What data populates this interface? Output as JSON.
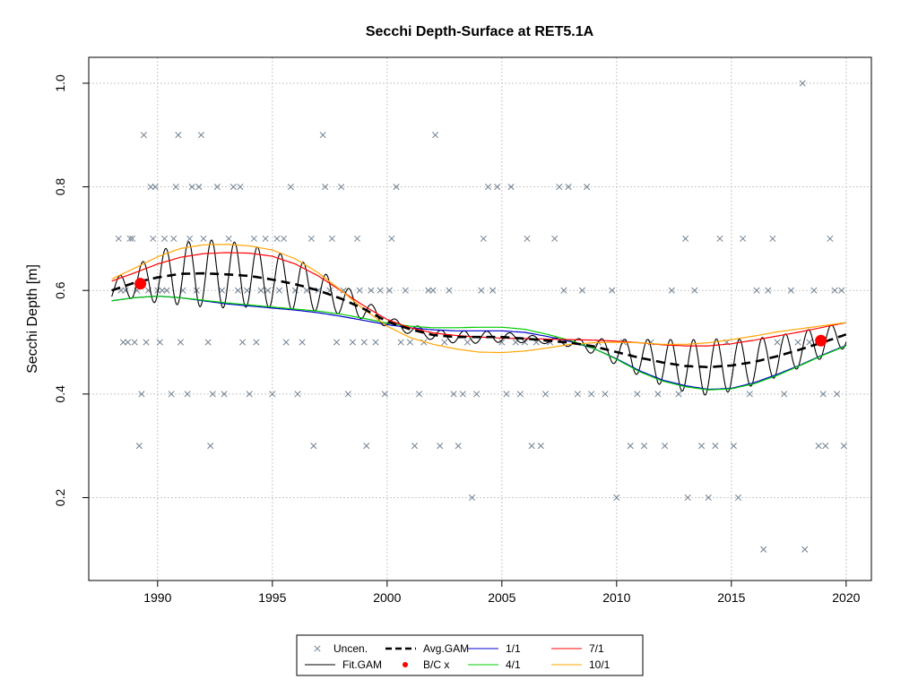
{
  "chart_data": {
    "type": "line",
    "title": "Secchi Depth-Surface at RET5.1A",
    "ylabel": "Secchi Depth [m]",
    "xlabel": "",
    "xlim": [
      1987.0,
      2021.1
    ],
    "ylim": [
      0.04,
      1.05
    ],
    "x_ticks": [
      1990,
      1995,
      2000,
      2005,
      2010,
      2015,
      2020
    ],
    "y_ticks": [
      0.2,
      0.4,
      0.6,
      0.8,
      1.0
    ],
    "x_tick_labels": [
      "1990",
      "1995",
      "2000",
      "2005",
      "2010",
      "2015",
      "2020"
    ],
    "y_tick_labels": [
      "0.2",
      "0.4",
      "0.6",
      "0.8",
      "1.0"
    ],
    "grid": true,
    "legend_position": "bottom-center",
    "legend": [
      {
        "label": "Uncen.",
        "symbol": "x",
        "color": "#708090"
      },
      {
        "label": "Avg.GAM",
        "symbol": "dashed-line",
        "color": "#000000"
      },
      {
        "label": "1/1",
        "symbol": "line",
        "color": "#0000cd"
      },
      {
        "label": "7/1",
        "symbol": "line",
        "color": "#ff0000"
      },
      {
        "label": "Fit.GAM",
        "symbol": "line",
        "color": "#000000"
      },
      {
        "label": "B/C x",
        "symbol": "dot",
        "color": "#ff0000"
      },
      {
        "label": "4/1",
        "symbol": "line",
        "color": "#00cd00"
      },
      {
        "label": "10/1",
        "symbol": "line",
        "color": "#ffa500"
      }
    ],
    "observations": [
      [
        1988.3,
        0.7
      ],
      [
        1988.4,
        0.6
      ],
      [
        1988.5,
        0.5
      ],
      [
        1988.6,
        0.6
      ],
      [
        1988.7,
        0.5
      ],
      [
        1988.8,
        0.7
      ],
      [
        1988.9,
        0.7
      ],
      [
        1989.0,
        0.5
      ],
      [
        1989.1,
        0.6
      ],
      [
        1989.2,
        0.3
      ],
      [
        1989.3,
        0.4
      ],
      [
        1989.4,
        0.9
      ],
      [
        1989.5,
        0.5
      ],
      [
        1989.6,
        0.6
      ],
      [
        1989.7,
        0.8
      ],
      [
        1989.8,
        0.7
      ],
      [
        1989.9,
        0.8
      ],
      [
        1990.0,
        0.6
      ],
      [
        1990.1,
        0.5
      ],
      [
        1990.2,
        0.6
      ],
      [
        1990.3,
        0.7
      ],
      [
        1990.4,
        0.6
      ],
      [
        1990.6,
        0.4
      ],
      [
        1990.7,
        0.7
      ],
      [
        1990.8,
        0.8
      ],
      [
        1990.9,
        0.9
      ],
      [
        1991.0,
        0.5
      ],
      [
        1991.1,
        0.6
      ],
      [
        1991.3,
        0.4
      ],
      [
        1991.4,
        0.7
      ],
      [
        1991.5,
        0.8
      ],
      [
        1991.7,
        0.6
      ],
      [
        1991.8,
        0.8
      ],
      [
        1991.9,
        0.9
      ],
      [
        1992.0,
        0.7
      ],
      [
        1992.2,
        0.5
      ],
      [
        1992.3,
        0.3
      ],
      [
        1992.4,
        0.4
      ],
      [
        1992.6,
        0.8
      ],
      [
        1992.8,
        0.6
      ],
      [
        1992.9,
        0.4
      ],
      [
        1993.1,
        0.7
      ],
      [
        1993.3,
        0.8
      ],
      [
        1993.5,
        0.6
      ],
      [
        1993.6,
        0.8
      ],
      [
        1993.7,
        0.5
      ],
      [
        1993.9,
        0.6
      ],
      [
        1994.0,
        0.4
      ],
      [
        1994.2,
        0.7
      ],
      [
        1994.3,
        0.5
      ],
      [
        1994.5,
        0.6
      ],
      [
        1994.7,
        0.7
      ],
      [
        1994.8,
        0.6
      ],
      [
        1995.0,
        0.4
      ],
      [
        1995.2,
        0.7
      ],
      [
        1995.3,
        0.6
      ],
      [
        1995.5,
        0.7
      ],
      [
        1995.6,
        0.5
      ],
      [
        1995.8,
        0.8
      ],
      [
        1996.0,
        0.6
      ],
      [
        1996.1,
        0.4
      ],
      [
        1996.3,
        0.5
      ],
      [
        1996.5,
        0.6
      ],
      [
        1996.7,
        0.7
      ],
      [
        1996.8,
        0.3
      ],
      [
        1997.0,
        0.6
      ],
      [
        1997.2,
        0.9
      ],
      [
        1997.3,
        0.8
      ],
      [
        1997.5,
        0.6
      ],
      [
        1997.6,
        0.7
      ],
      [
        1997.8,
        0.5
      ],
      [
        1998.0,
        0.8
      ],
      [
        1998.1,
        0.6
      ],
      [
        1998.3,
        0.4
      ],
      [
        1998.5,
        0.5
      ],
      [
        1998.7,
        0.7
      ],
      [
        1998.8,
        0.6
      ],
      [
        1999.0,
        0.5
      ],
      [
        1999.1,
        0.3
      ],
      [
        1999.3,
        0.6
      ],
      [
        1999.5,
        0.5
      ],
      [
        1999.7,
        0.6
      ],
      [
        1999.9,
        0.4
      ],
      [
        2000.1,
        0.6
      ],
      [
        2000.2,
        0.7
      ],
      [
        2000.4,
        0.8
      ],
      [
        2000.6,
        0.5
      ],
      [
        2000.8,
        0.6
      ],
      [
        2001.0,
        0.5
      ],
      [
        2001.2,
        0.3
      ],
      [
        2001.4,
        0.4
      ],
      [
        2001.6,
        0.5
      ],
      [
        2001.8,
        0.6
      ],
      [
        2002.0,
        0.6
      ],
      [
        2002.1,
        0.9
      ],
      [
        2002.3,
        0.3
      ],
      [
        2002.5,
        0.5
      ],
      [
        2002.7,
        0.6
      ],
      [
        2002.9,
        0.4
      ],
      [
        2003.1,
        0.3
      ],
      [
        2003.3,
        0.4
      ],
      [
        2003.5,
        0.5
      ],
      [
        2003.7,
        0.2
      ],
      [
        2003.9,
        0.4
      ],
      [
        2004.1,
        0.6
      ],
      [
        2004.2,
        0.7
      ],
      [
        2004.4,
        0.8
      ],
      [
        2004.6,
        0.6
      ],
      [
        2004.8,
        0.8
      ],
      [
        2005.0,
        0.5
      ],
      [
        2005.2,
        0.4
      ],
      [
        2005.4,
        0.8
      ],
      [
        2005.6,
        0.5
      ],
      [
        2005.8,
        0.4
      ],
      [
        2006.0,
        0.5
      ],
      [
        2006.1,
        0.7
      ],
      [
        2006.3,
        0.3
      ],
      [
        2006.5,
        0.5
      ],
      [
        2006.7,
        0.3
      ],
      [
        2006.9,
        0.4
      ],
      [
        2007.1,
        0.5
      ],
      [
        2007.3,
        0.7
      ],
      [
        2007.5,
        0.8
      ],
      [
        2007.7,
        0.6
      ],
      [
        2007.9,
        0.8
      ],
      [
        2008.1,
        0.5
      ],
      [
        2008.3,
        0.4
      ],
      [
        2008.5,
        0.6
      ],
      [
        2008.7,
        0.8
      ],
      [
        2008.9,
        0.4
      ],
      [
        2009.2,
        0.5
      ],
      [
        2009.5,
        0.4
      ],
      [
        2009.8,
        0.6
      ],
      [
        2010.0,
        0.2
      ],
      [
        2010.3,
        0.5
      ],
      [
        2010.6,
        0.3
      ],
      [
        2010.9,
        0.4
      ],
      [
        2011.2,
        0.3
      ],
      [
        2011.5,
        0.5
      ],
      [
        2011.8,
        0.4
      ],
      [
        2012.1,
        0.3
      ],
      [
        2012.4,
        0.6
      ],
      [
        2012.7,
        0.4
      ],
      [
        2013.0,
        0.7
      ],
      [
        2013.1,
        0.2
      ],
      [
        2013.4,
        0.6
      ],
      [
        2013.7,
        0.3
      ],
      [
        2014.0,
        0.2
      ],
      [
        2014.3,
        0.3
      ],
      [
        2014.5,
        0.7
      ],
      [
        2014.8,
        0.5
      ],
      [
        2015.1,
        0.3
      ],
      [
        2015.3,
        0.2
      ],
      [
        2015.5,
        0.7
      ],
      [
        2015.8,
        0.4
      ],
      [
        2016.1,
        0.6
      ],
      [
        2016.4,
        0.1
      ],
      [
        2016.6,
        0.6
      ],
      [
        2016.8,
        0.7
      ],
      [
        2017.0,
        0.5
      ],
      [
        2017.3,
        0.4
      ],
      [
        2017.6,
        0.6
      ],
      [
        2017.9,
        0.5
      ],
      [
        2018.1,
        1.0
      ],
      [
        2018.2,
        0.1
      ],
      [
        2018.4,
        0.5
      ],
      [
        2018.6,
        0.6
      ],
      [
        2018.8,
        0.3
      ],
      [
        2019.0,
        0.4
      ],
      [
        2019.1,
        0.3
      ],
      [
        2019.3,
        0.7
      ],
      [
        2019.5,
        0.6
      ],
      [
        2019.6,
        0.4
      ],
      [
        2019.8,
        0.6
      ],
      [
        2019.9,
        0.3
      ]
    ],
    "bc_points": [
      [
        1989.25,
        0.613
      ],
      [
        2018.9,
        0.503
      ]
    ],
    "series": [
      {
        "name": "Avg.GAM",
        "color": "#000000",
        "dash": "10,6",
        "width": 2.6,
        "x": [
          1988.0,
          1989.0,
          1990.0,
          1991.0,
          1992.0,
          1993.0,
          1994.0,
          1995.0,
          1996.0,
          1997.0,
          1998.0,
          1999.0,
          2000.0,
          2001.0,
          2002.0,
          2003.0,
          2004.0,
          2005.0,
          2006.0,
          2007.0,
          2008.0,
          2009.0,
          2010.0,
          2011.0,
          2012.0,
          2013.0,
          2014.0,
          2015.0,
          2016.0,
          2017.0,
          2018.0,
          2019.0,
          2020.0
        ],
        "y": [
          0.6,
          0.615,
          0.625,
          0.632,
          0.633,
          0.631,
          0.628,
          0.621,
          0.612,
          0.6,
          0.584,
          0.564,
          0.54,
          0.525,
          0.514,
          0.51,
          0.51,
          0.51,
          0.507,
          0.503,
          0.499,
          0.492,
          0.481,
          0.47,
          0.461,
          0.454,
          0.452,
          0.455,
          0.462,
          0.473,
          0.486,
          0.5,
          0.515
        ]
      },
      {
        "name": "1/1",
        "color": "#0000cd",
        "width": 1.2,
        "x": [
          1988.0,
          1989.0,
          1990.0,
          1991.0,
          1992.0,
          1993.0,
          1994.0,
          1995.0,
          1996.0,
          1997.0,
          1998.0,
          1999.0,
          2000.0,
          2001.0,
          2002.0,
          2003.0,
          2004.0,
          2005.0,
          2006.0,
          2007.0,
          2008.0,
          2009.0,
          2010.0,
          2011.0,
          2012.0,
          2013.0,
          2014.0,
          2015.0,
          2016.0,
          2017.0,
          2018.0,
          2019.0,
          2020.0
        ],
        "y": [
          0.58,
          0.586,
          0.589,
          0.586,
          0.58,
          0.574,
          0.57,
          0.566,
          0.562,
          0.557,
          0.55,
          0.542,
          0.534,
          0.528,
          0.524,
          0.522,
          0.522,
          0.522,
          0.519,
          0.511,
          0.501,
          0.488,
          0.468,
          0.445,
          0.427,
          0.416,
          0.409,
          0.411,
          0.422,
          0.438,
          0.456,
          0.476,
          0.494
        ]
      },
      {
        "name": "4/1",
        "color": "#00cd00",
        "width": 1.2,
        "x": [
          1988.0,
          1989.0,
          1990.0,
          1991.0,
          1992.0,
          1993.0,
          1994.0,
          1995.0,
          1996.0,
          1997.0,
          1998.0,
          1999.0,
          2000.0,
          2001.0,
          2002.0,
          2003.0,
          2004.0,
          2005.0,
          2006.0,
          2007.0,
          2008.0,
          2009.0,
          2010.0,
          2011.0,
          2012.0,
          2013.0,
          2014.0,
          2015.0,
          2016.0,
          2017.0,
          2018.0,
          2019.0,
          2020.0
        ],
        "y": [
          0.58,
          0.586,
          0.589,
          0.586,
          0.581,
          0.576,
          0.572,
          0.568,
          0.564,
          0.56,
          0.554,
          0.546,
          0.537,
          0.531,
          0.528,
          0.528,
          0.529,
          0.529,
          0.525,
          0.515,
          0.503,
          0.488,
          0.467,
          0.443,
          0.425,
          0.414,
          0.408,
          0.41,
          0.42,
          0.436,
          0.455,
          0.475,
          0.493
        ]
      },
      {
        "name": "7/1",
        "color": "#ff0000",
        "width": 1.2,
        "x": [
          1988.0,
          1989.0,
          1990.0,
          1991.0,
          1992.0,
          1993.0,
          1994.0,
          1995.0,
          1996.0,
          1997.0,
          1998.0,
          1999.0,
          2000.0,
          2001.0,
          2002.0,
          2003.0,
          2004.0,
          2005.0,
          2006.0,
          2007.0,
          2008.0,
          2009.0,
          2010.0,
          2011.0,
          2012.0,
          2013.0,
          2014.0,
          2015.0,
          2016.0,
          2017.0,
          2018.0,
          2019.0,
          2020.0
        ],
        "y": [
          0.618,
          0.634,
          0.651,
          0.664,
          0.671,
          0.673,
          0.672,
          0.666,
          0.651,
          0.628,
          0.599,
          0.57,
          0.544,
          0.528,
          0.518,
          0.513,
          0.51,
          0.508,
          0.507,
          0.506,
          0.505,
          0.504,
          0.502,
          0.499,
          0.495,
          0.493,
          0.493,
          0.497,
          0.504,
          0.512,
          0.52,
          0.529,
          0.538
        ]
      },
      {
        "name": "10/1",
        "color": "#ffa500",
        "width": 1.2,
        "x": [
          1988.0,
          1989.0,
          1990.0,
          1991.0,
          1992.0,
          1993.0,
          1994.0,
          1995.0,
          1996.0,
          1997.0,
          1998.0,
          1999.0,
          2000.0,
          2001.0,
          2002.0,
          2003.0,
          2004.0,
          2005.0,
          2006.0,
          2007.0,
          2008.0,
          2009.0,
          2010.0,
          2011.0,
          2012.0,
          2013.0,
          2014.0,
          2015.0,
          2016.0,
          2017.0,
          2018.0,
          2019.0,
          2020.0
        ],
        "y": [
          0.622,
          0.643,
          0.665,
          0.681,
          0.688,
          0.689,
          0.686,
          0.678,
          0.661,
          0.634,
          0.6,
          0.563,
          0.531,
          0.509,
          0.496,
          0.487,
          0.481,
          0.48,
          0.483,
          0.489,
          0.496,
          0.499,
          0.5,
          0.499,
          0.496,
          0.496,
          0.499,
          0.505,
          0.512,
          0.52,
          0.526,
          0.532,
          0.538
        ]
      },
      {
        "name": "Fit.GAM",
        "color": "#000000",
        "width": 1.1,
        "seasonal": true,
        "x": [
          1988.0,
          1989.0,
          1990.0,
          1991.0,
          1992.0,
          1993.0,
          1994.0,
          1995.0,
          1996.0,
          1997.0,
          1998.0,
          1999.0,
          2000.0,
          2001.0,
          2002.0,
          2003.0,
          2004.0,
          2005.0,
          2006.0,
          2007.0,
          2008.0,
          2009.0,
          2010.0,
          2011.0,
          2012.0,
          2013.0,
          2014.0,
          2015.0,
          2016.0,
          2017.0,
          2018.0,
          2019.0,
          2020.0
        ],
        "center": [
          0.6,
          0.615,
          0.625,
          0.632,
          0.633,
          0.631,
          0.628,
          0.621,
          0.612,
          0.6,
          0.584,
          0.564,
          0.54,
          0.525,
          0.514,
          0.51,
          0.51,
          0.51,
          0.507,
          0.503,
          0.499,
          0.492,
          0.481,
          0.47,
          0.461,
          0.454,
          0.452,
          0.455,
          0.462,
          0.473,
          0.486,
          0.5,
          0.515
        ],
        "amplitude": [
          0.02,
          0.03,
          0.05,
          0.06,
          0.065,
          0.065,
          0.06,
          0.055,
          0.05,
          0.04,
          0.03,
          0.02,
          0.01,
          0.01,
          0.01,
          0.012,
          0.012,
          0.01,
          0.008,
          0.006,
          0.008,
          0.015,
          0.025,
          0.035,
          0.045,
          0.05,
          0.055,
          0.05,
          0.045,
          0.04,
          0.035,
          0.03,
          0.025
        ]
      }
    ]
  }
}
